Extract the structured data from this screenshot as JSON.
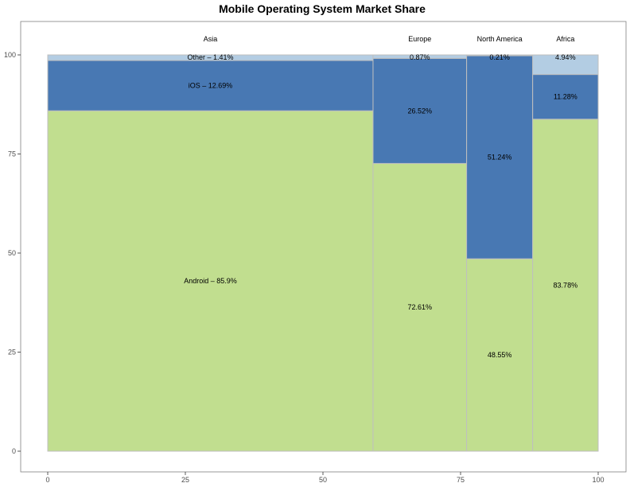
{
  "chart_data": {
    "type": "bar",
    "subtype": "mosaic",
    "title": "Mobile Operating System Market Share",
    "xlabel": "",
    "ylabel": "",
    "xlim": [
      0,
      100
    ],
    "ylim": [
      0,
      100
    ],
    "x_ticks": [
      "0",
      "25",
      "50",
      "75",
      "100"
    ],
    "y_ticks": [
      "0",
      "25",
      "50",
      "75",
      "100"
    ],
    "grid": false,
    "colors": {
      "Android": "#c1de8f",
      "iOS": "#4878b3",
      "Other": "#b3cde3",
      "border": "#bfbfbf"
    },
    "categories": [
      "Asia",
      "Europe",
      "North America",
      "Africa"
    ],
    "widths": [
      59.1,
      17.0,
      12.0,
      11.9
    ],
    "series": [
      {
        "key": "Android",
        "values": [
          85.9,
          72.61,
          48.55,
          83.78
        ]
      },
      {
        "key": "iOS",
        "values": [
          12.69,
          26.52,
          51.24,
          11.28
        ]
      },
      {
        "key": "Other",
        "values": [
          1.41,
          0.87,
          0.21,
          4.94
        ]
      }
    ],
    "labels": [
      [
        "Android – 85.9%",
        "iOS – 12.69%",
        "Other – 1.41%"
      ],
      [
        "72.61%",
        "26.52%",
        "0.87%"
      ],
      [
        "48.55%",
        "51.24%",
        "0.21%"
      ],
      [
        "83.78%",
        "11.28%",
        "4.94%"
      ]
    ]
  }
}
